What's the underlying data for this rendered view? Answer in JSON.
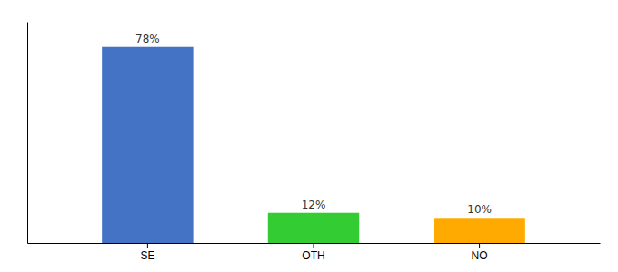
{
  "chart_data": {
    "type": "bar",
    "categories": [
      "SE",
      "OTH",
      "NO"
    ],
    "values": [
      78,
      12,
      10
    ],
    "value_labels": [
      "78%",
      "12%",
      "10%"
    ],
    "colors": [
      "#4472c4",
      "#33cc33",
      "#ffaa00"
    ],
    "ylim": [
      0,
      88
    ],
    "data_labels": true,
    "tick_labels": "x",
    "grid": false
  }
}
